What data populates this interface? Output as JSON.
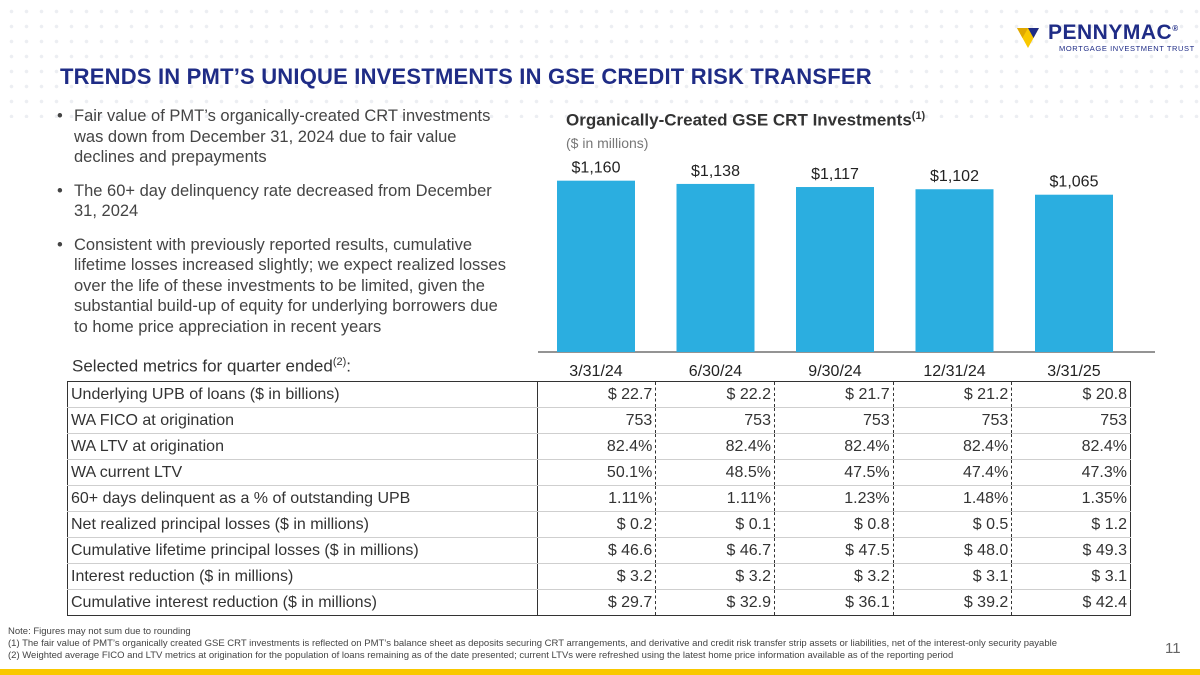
{
  "brand": {
    "name": "PENNYMAC",
    "trademark": "®",
    "subtitle": "MORTGAGE INVESTMENT TRUST",
    "colors": {
      "navy": "#1f2c86",
      "gold": "#f9c800",
      "bar": "#2baee0"
    }
  },
  "title": "TRENDS IN PMT’S UNIQUE INVESTMENTS IN GSE CREDIT RISK TRANSFER",
  "bullets": [
    "Fair value of PMT’s organically-created CRT investments was down from December 31, 2024 due to fair value declines and prepayments",
    "The 60+ day delinquency rate decreased from December 31, 2024",
    "Consistent with previously reported results, cumulative lifetime losses increased slightly; we expect realized losses over the life of these investments to be limited, given the substantial build-up of equity for underlying borrowers due to home price appreciation in recent years"
  ],
  "chart": {
    "title": "Organically-Created GSE CRT Investments",
    "title_sup": "(1)",
    "subtitle": "($ in millions)"
  },
  "chart_data": {
    "type": "bar",
    "categories": [
      "3/31/24",
      "6/30/24",
      "9/30/24",
      "12/31/24",
      "3/31/25"
    ],
    "values": [
      1160,
      1138,
      1117,
      1102,
      1065
    ],
    "data_labels": [
      "$1,160",
      "$1,138",
      "$1,117",
      "$1,102",
      "$1,065"
    ],
    "title": "Organically-Created GSE CRT Investments",
    "subtitle": "($ in millions)",
    "bar_color": "#2baee0",
    "grid": false,
    "legend": "none"
  },
  "metrics": {
    "label": "Selected metrics for quarter ended",
    "label_sup": "(2)",
    "label_suffix": ":",
    "rows": [
      {
        "label": "Underlying UPB of loans ($ in billions)",
        "values": [
          "$ 22.7",
          "$ 22.2",
          "$ 21.7",
          "$ 21.2",
          "$ 20.8"
        ]
      },
      {
        "label": "WA FICO at origination",
        "values": [
          "753",
          "753",
          "753",
          "753",
          "753"
        ]
      },
      {
        "label": "WA LTV at origination",
        "values": [
          "82.4%",
          "82.4%",
          "82.4%",
          "82.4%",
          "82.4%"
        ]
      },
      {
        "label": "WA current LTV",
        "values": [
          "50.1%",
          "48.5%",
          "47.5%",
          "47.4%",
          "47.3%"
        ]
      },
      {
        "label": "60+ days delinquent as a % of outstanding UPB",
        "values": [
          "1.11%",
          "1.11%",
          "1.23%",
          "1.48%",
          "1.35%"
        ]
      },
      {
        "label": "Net realized principal losses ($ in millions)",
        "values": [
          "$ 0.2",
          "$ 0.1",
          "$ 0.8",
          "$ 0.5",
          "$ 1.2"
        ]
      },
      {
        "label": "Cumulative lifetime principal losses ($ in millions)",
        "values": [
          "$ 46.6",
          "$ 46.7",
          "$ 47.5",
          "$ 48.0",
          "$ 49.3"
        ]
      },
      {
        "label": "Interest reduction ($ in millions)",
        "values": [
          "$ 3.2",
          "$ 3.2",
          "$ 3.2",
          "$ 3.1",
          "$ 3.1"
        ]
      },
      {
        "label": "Cumulative interest reduction ($ in millions)",
        "values": [
          "$ 29.7",
          "$ 32.9",
          "$ 36.1",
          "$ 39.2",
          "$ 42.4"
        ]
      }
    ]
  },
  "footnotes": [
    "Note: Figures may not sum due to rounding",
    "(1) The fair value of PMT’s organically created GSE CRT investments is reflected on PMT’s balance sheet as deposits securing CRT arrangements, and derivative and credit risk transfer strip assets or liabilities, net of the interest-only security payable",
    "(2) Weighted average FICO and LTV metrics at origination for the population of loans remaining as of the date presented; current LTVs were refreshed using the latest home price information available as of the reporting period"
  ],
  "page_number": "11"
}
